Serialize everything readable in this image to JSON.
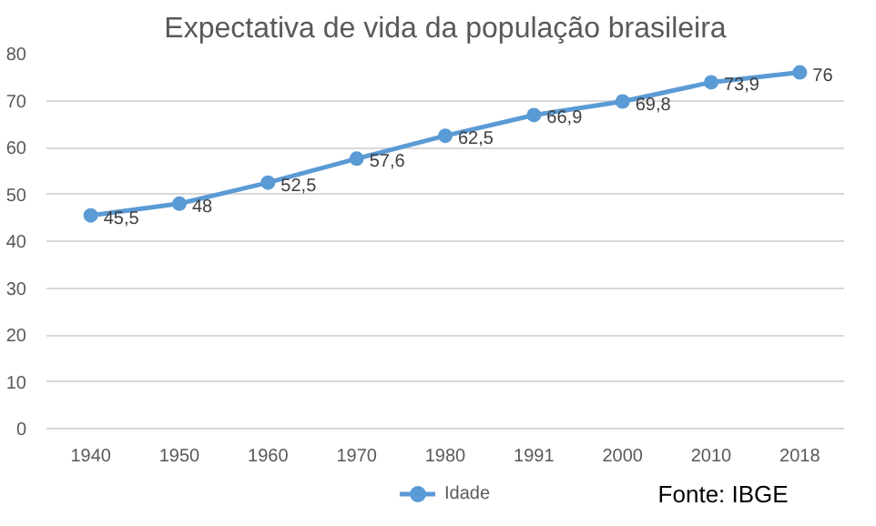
{
  "chart_data": {
    "type": "line",
    "title": "Expectativa de vida da população brasileira",
    "categories": [
      "1940",
      "1950",
      "1960",
      "1970",
      "1980",
      "1991",
      "2000",
      "2010",
      "2018"
    ],
    "series": [
      {
        "name": "Idade",
        "color": "#5b9bd5",
        "values": [
          45.5,
          48,
          52.5,
          57.6,
          62.5,
          66.9,
          69.8,
          73.9,
          76
        ],
        "value_labels": [
          "45,5",
          "48",
          "52,5",
          "57,6",
          "62,5",
          "66,9",
          "69,8",
          "73,9",
          "76"
        ]
      }
    ],
    "ylim": [
      0,
      80
    ],
    "yticks": [
      0,
      10,
      20,
      30,
      40,
      50,
      60,
      70,
      80
    ],
    "grid": "y",
    "legend": "bottom",
    "marker": "circle",
    "line_style": "solid",
    "annotations": [
      "Fonte: IBGE"
    ]
  }
}
